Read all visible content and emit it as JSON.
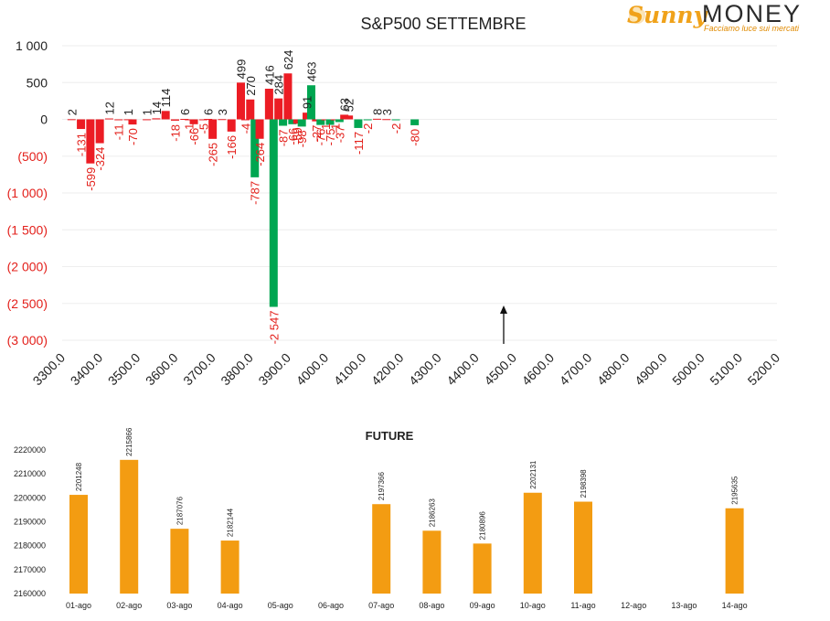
{
  "brand": {
    "name_part1": "Sunny",
    "name_part2": "MONEY",
    "tagline": "Facciamo luce sui mercati"
  },
  "colors": {
    "positive": "#ec1c24",
    "negative": "#00a651",
    "future_bar": "#f39c12",
    "text": "#222222",
    "neg_tick": "#e3201b"
  },
  "chart_data": [
    {
      "type": "bar",
      "title": "S&P500 SETTEMBRE",
      "xlim": [
        3300,
        5200
      ],
      "ylim": [
        -3000,
        1000
      ],
      "y_ticks": [
        {
          "value": 1000,
          "label": "1 000"
        },
        {
          "value": 500,
          "label": "500"
        },
        {
          "value": 0,
          "label": "0"
        },
        {
          "value": -500,
          "label": "(500)"
        },
        {
          "value": -1000,
          "label": "(1 000)"
        },
        {
          "value": -1500,
          "label": "(1 500)"
        },
        {
          "value": -2000,
          "label": "(2 000)"
        },
        {
          "value": -2500,
          "label": "(2 500)"
        },
        {
          "value": -3000,
          "label": "(3 000)"
        }
      ],
      "x_ticks": [
        "3300.0",
        "3400.0",
        "3500.0",
        "3600.0",
        "3700.0",
        "3800.0",
        "3900.0",
        "4000.0",
        "4100.0",
        "4200.0",
        "4300.0",
        "4400.0",
        "4500.0",
        "4600.0",
        "4700.0",
        "4800.0",
        "4900.0",
        "5000.0",
        "5100.0",
        "5200.0"
      ],
      "grid": true,
      "annotation": "arrow at 4500",
      "series": [
        {
          "values": [
            {
              "x": 3325,
              "y": 2,
              "label": "2"
            },
            {
              "x": 3350,
              "y": -131,
              "label": "-131"
            },
            {
              "x": 3375,
              "y": -599,
              "label": "-599"
            },
            {
              "x": 3400,
              "y": -324,
              "label": "-324"
            },
            {
              "x": 3425,
              "y": 12,
              "label": "12"
            },
            {
              "x": 3450,
              "y": -11,
              "label": "-11"
            },
            {
              "x": 3475,
              "y": 1,
              "label": "1"
            },
            {
              "x": 3487,
              "y": -70,
              "label": "-70"
            },
            {
              "x": 3525,
              "y": 1,
              "label": "1"
            },
            {
              "x": 3550,
              "y": 14,
              "label": "14"
            },
            {
              "x": 3575,
              "y": 114,
              "label": "114"
            },
            {
              "x": 3600,
              "y": -18,
              "label": "-18"
            },
            {
              "x": 3625,
              "y": 6,
              "label": "6"
            },
            {
              "x": 3637,
              "y": -1,
              "label": "-1"
            },
            {
              "x": 3650,
              "y": -66,
              "label": "-66"
            },
            {
              "x": 3675,
              "y": -5,
              "label": "-5"
            },
            {
              "x": 3688,
              "y": 6,
              "label": "6"
            },
            {
              "x": 3700,
              "y": -265,
              "label": "-265"
            },
            {
              "x": 3725,
              "y": 3,
              "label": "3"
            },
            {
              "x": 3750,
              "y": -166,
              "label": "-166"
            },
            {
              "x": 3775,
              "y": 499,
              "label": "499"
            },
            {
              "x": 3787,
              "y": -4,
              "label": "-4"
            },
            {
              "x": 3800,
              "y": 270,
              "label": "270"
            },
            {
              "x": 3812,
              "y": -787,
              "label": "-787"
            },
            {
              "x": 3825,
              "y": -264,
              "label": "-264"
            },
            {
              "x": 3850,
              "y": 416,
              "label": "416"
            },
            {
              "x": 3862,
              "y": -2547,
              "label": "-2 547"
            },
            {
              "x": 3875,
              "y": 284,
              "label": "284"
            },
            {
              "x": 3887,
              "y": -87,
              "label": "-87"
            },
            {
              "x": 3900,
              "y": 624,
              "label": "624"
            },
            {
              "x": 3912,
              "y": -66,
              "label": "-66"
            },
            {
              "x": 3925,
              "y": -59,
              "label": "-59"
            },
            {
              "x": 3937,
              "y": -98,
              "label": "-98"
            },
            {
              "x": 3950,
              "y": 91,
              "label": "91"
            },
            {
              "x": 3962,
              "y": 463,
              "label": "463"
            },
            {
              "x": 3975,
              "y": -27,
              "label": "-27"
            },
            {
              "x": 3987,
              "y": -76,
              "label": "-76"
            },
            {
              "x": 4000,
              "y": -1,
              "label": "-1"
            },
            {
              "x": 4012,
              "y": -75,
              "label": "-75"
            },
            {
              "x": 4025,
              "y": -1,
              "label": "-1"
            },
            {
              "x": 4037,
              "y": -37,
              "label": "-37"
            },
            {
              "x": 4050,
              "y": 63,
              "label": "63"
            },
            {
              "x": 4062,
              "y": 52,
              "label": "52"
            },
            {
              "x": 4087,
              "y": -117,
              "label": "-117"
            },
            {
              "x": 4112,
              "y": -2,
              "label": "-2"
            },
            {
              "x": 4137,
              "y": 8,
              "label": "8"
            },
            {
              "x": 4162,
              "y": 3,
              "label": "3"
            },
            {
              "x": 4187,
              "y": -2,
              "label": "-2"
            },
            {
              "x": 4237,
              "y": -80,
              "label": "-80"
            }
          ]
        }
      ]
    },
    {
      "type": "bar",
      "title": "FUTURE",
      "categories": [
        "01-ago",
        "02-ago",
        "03-ago",
        "04-ago",
        "05-ago",
        "06-ago",
        "07-ago",
        "08-ago",
        "09-ago",
        "10-ago",
        "11-ago",
        "12-ago",
        "13-ago",
        "14-ago"
      ],
      "values": [
        2201248,
        2215866,
        2187076,
        2182144,
        null,
        null,
        2197366,
        2186263,
        2180896,
        2202131,
        2198398,
        null,
        null,
        2195635
      ],
      "value_labels": [
        "2201248",
        "2215866",
        "2187076",
        "2182144",
        "",
        "",
        "2197366",
        "2186263",
        "2180896",
        "2202131",
        "2198398",
        "",
        "",
        "2195635"
      ],
      "ylim": [
        2160000,
        2220000
      ],
      "y_ticks": [
        "2160000",
        "2170000",
        "2180000",
        "2190000",
        "2200000",
        "2210000",
        "2220000"
      ]
    }
  ]
}
